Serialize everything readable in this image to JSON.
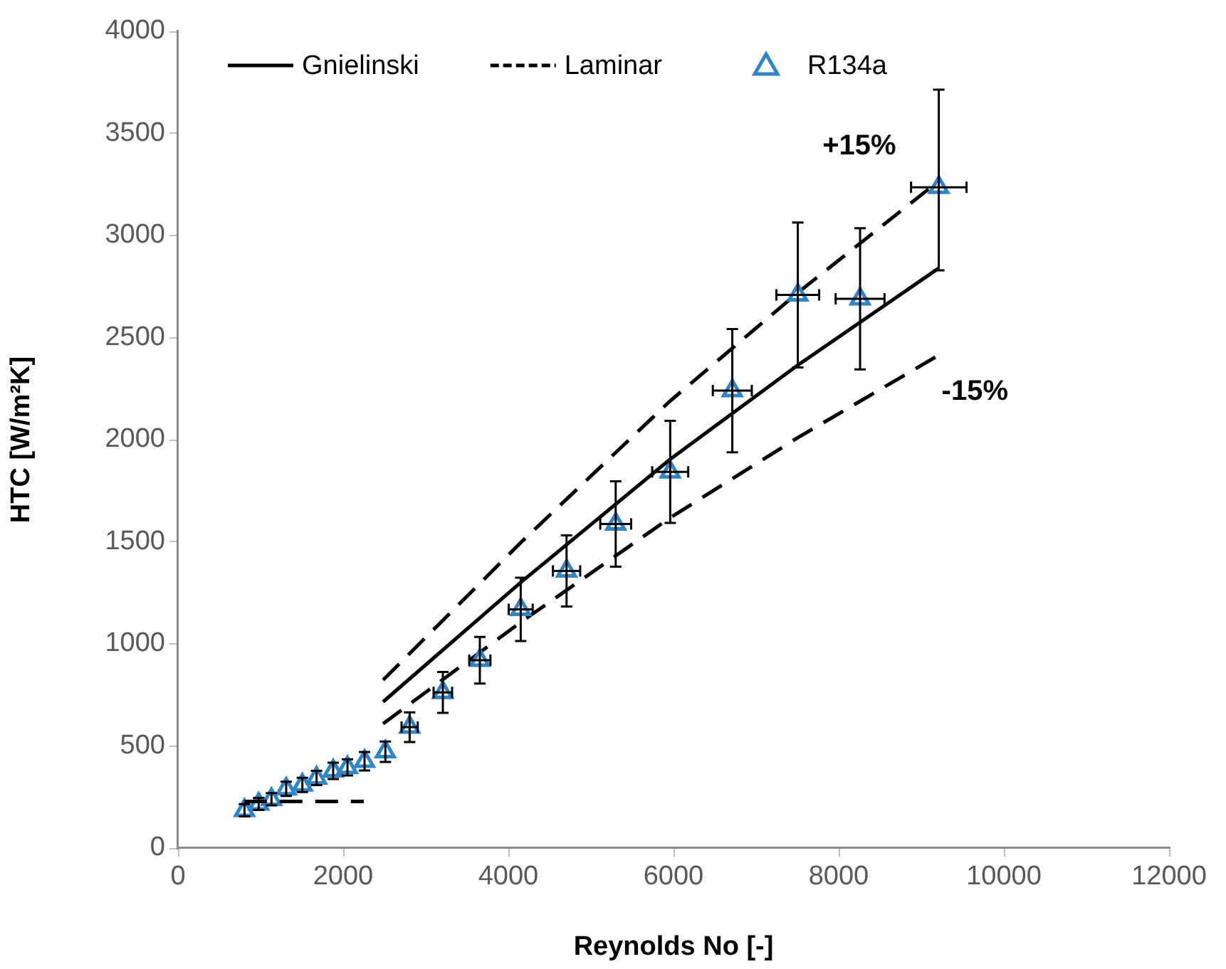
{
  "chart_data": {
    "type": "scatter",
    "xlabel": "Reynolds No [-]",
    "ylabel": "HTC [W/m²K]",
    "xlim": [
      0,
      12000
    ],
    "xticks": [
      0,
      2000,
      4000,
      6000,
      8000,
      10000,
      12000
    ],
    "ylim": [
      0,
      4000
    ],
    "yticks": [
      0,
      500,
      1000,
      1500,
      2000,
      2500,
      3000,
      3500,
      4000
    ],
    "grid": false,
    "legend": "top left",
    "series": [
      {
        "name": "Gnielinski",
        "type": "line",
        "color": "#000000",
        "line_style": "solid",
        "marker": "none",
        "x": [
          2483,
          4150,
          5960,
          7505,
          9212
        ],
        "values": [
          716,
          1301,
          1904,
          2365,
          2840
        ]
      },
      {
        "name": "Laminar",
        "type": "line",
        "color": "#000000",
        "line_style": "dashed",
        "marker": "none",
        "x": [
          800,
          2250
        ],
        "values": [
          228,
          228
        ]
      },
      {
        "name": "R134a",
        "type": "scatter",
        "color": "#2e86c8",
        "marker": "triangle",
        "x": [
          805,
          977,
          1132,
          1310,
          1506,
          1678,
          1879,
          2052,
          2259,
          2511,
          2805,
          3207,
          3655,
          4150,
          4705,
          5300,
          5960,
          6712,
          7505,
          8259,
          9212
        ],
        "values": [
          185,
          216,
          239,
          290,
          309,
          343,
          378,
          395,
          425,
          472,
          592,
          762,
          920,
          1169,
          1357,
          1587,
          1842,
          2240,
          2709,
          2690,
          3236
        ],
        "errors": [
          30,
          30,
          30,
          35,
          35,
          35,
          40,
          40,
          45,
          50,
          73,
          100,
          114,
          155,
          174,
          209,
          250,
          302,
          355,
          346,
          [
            2829,
            3714
          ]
        ],
        "xerrors": [
          null,
          null,
          null,
          null,
          null,
          null,
          null,
          null,
          null,
          null,
          98,
          112,
          128,
          145,
          165,
          187,
          218,
          236,
          259,
          296,
          336
        ]
      },
      {
        "type": "line",
        "color": "#000000",
        "line_style": "dashed",
        "marker": "none",
        "x": [
          2483,
          4150,
          5960,
          7505,
          9212
        ],
        "values": [
          823,
          1496,
          2190,
          2720,
          3267
        ]
      },
      {
        "type": "line",
        "color": "#000000",
        "line_style": "dashed",
        "marker": "none",
        "x": [
          2483,
          4150,
          5960,
          7505,
          9212
        ],
        "values": [
          609,
          1106,
          1618,
          2010,
          2414
        ]
      }
    ],
    "annotations": [
      "+15%",
      "-15%"
    ]
  }
}
